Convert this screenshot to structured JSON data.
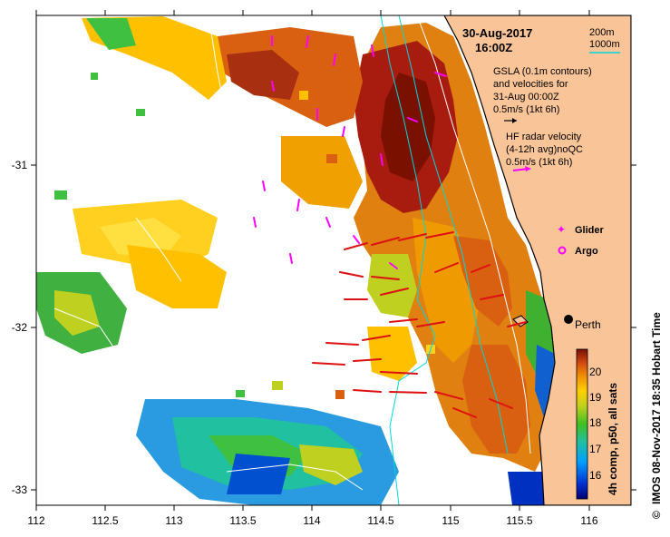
{
  "title": {
    "date": "30-Aug-2017",
    "time": "16:00Z"
  },
  "depth_legend": {
    "shallow": "200m",
    "deep": "1000m",
    "deep_color": "#00d8d8"
  },
  "gsla_legend": {
    "line1": "GSLA (0.1m contours)",
    "line2": "and velocities for",
    "line3": "31-Aug 00:00Z",
    "line4": "0.5m/s (1kt 6h)"
  },
  "hf_legend": {
    "line1": "HF radar velocity",
    "line2": "(4-12h avg)noQC",
    "line3": "0.5m/s (1kt 6h)"
  },
  "markers": {
    "glider": "Glider",
    "argo": "Argo",
    "city": "Perth",
    "marker_color": "#ff00ff"
  },
  "colorbar": {
    "label": "4h comp, p50, all sats",
    "ticks": [
      "16",
      "17",
      "18",
      "19",
      "20"
    ],
    "range": [
      15.4,
      20.9
    ]
  },
  "x_axis": {
    "ticks": [
      "112",
      "112.5",
      "113",
      "113.5",
      "114",
      "114.5",
      "115",
      "115.5",
      "116"
    ],
    "range": [
      112.0,
      116.33
    ]
  },
  "y_axis": {
    "ticks": [
      "-31",
      "-32",
      "-33"
    ],
    "range": [
      -33.1,
      -30.1
    ]
  },
  "credit": "IMOS 08-Nov-2017 18:35 Hobart Time",
  "colors": {
    "land": "#f9c497",
    "hf_vector": "#ff00ff",
    "sst_vector": "#dd1111",
    "coast": "#000000"
  }
}
